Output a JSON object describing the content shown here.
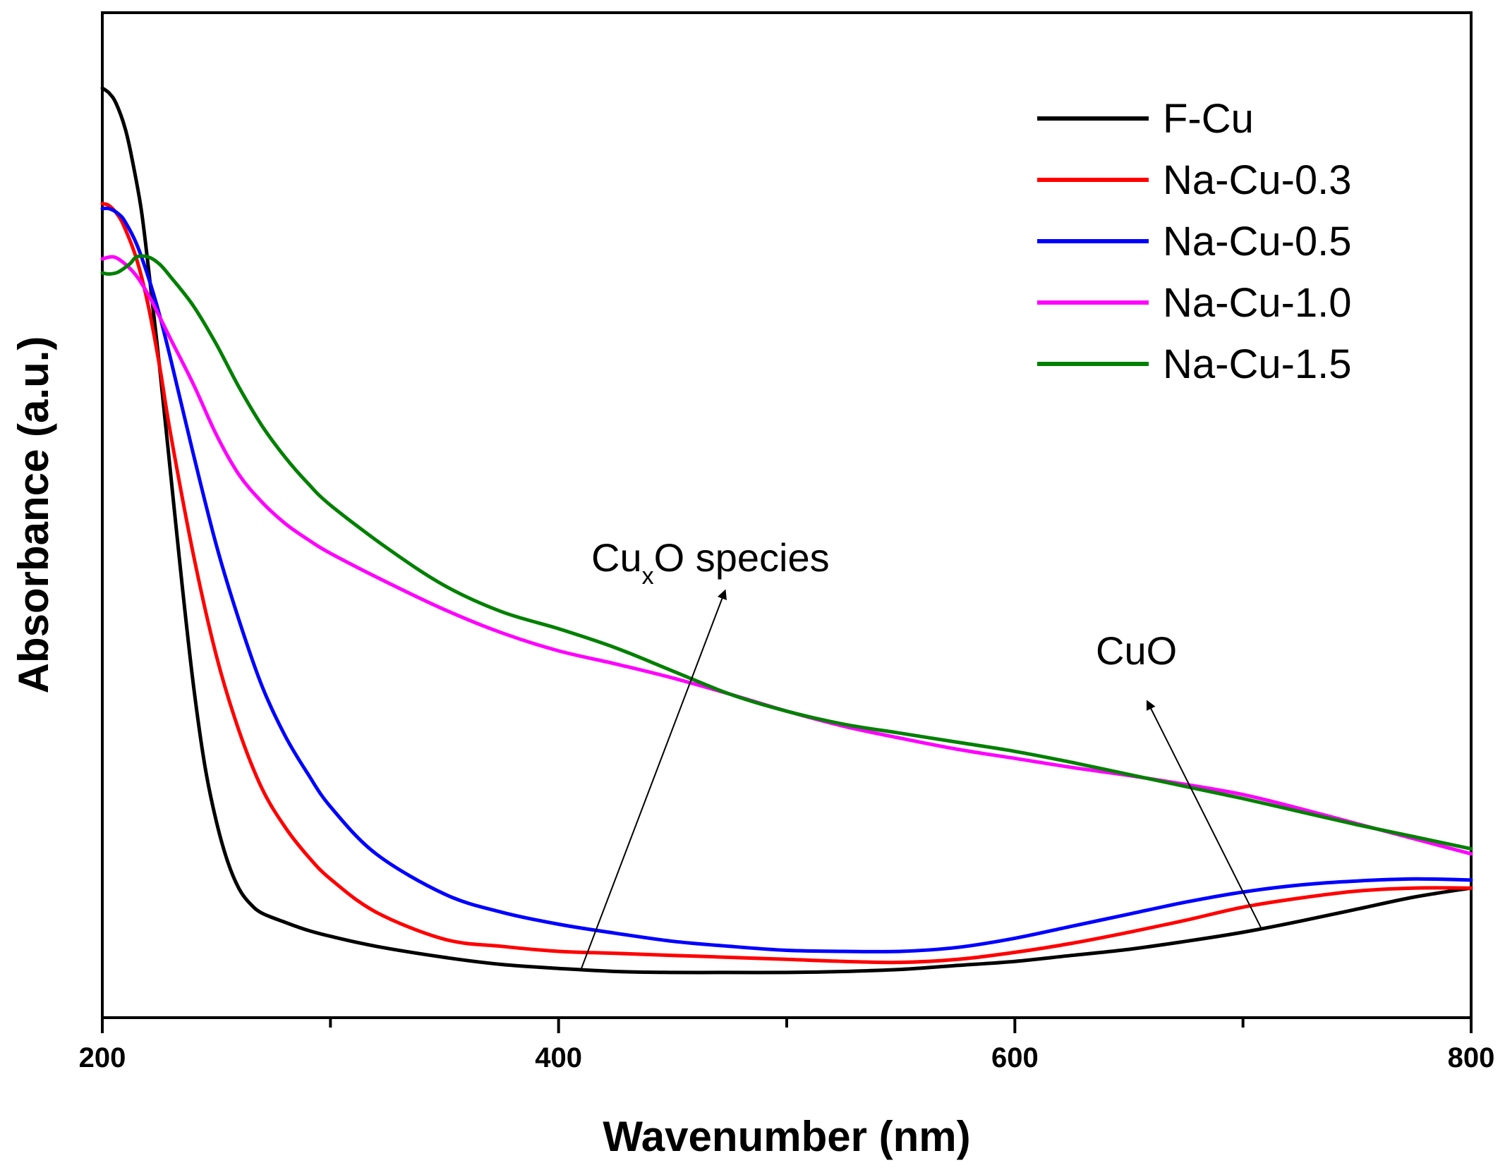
{
  "chart_data": {
    "type": "line",
    "title": "",
    "xlabel": "Wavenumber (nm)",
    "ylabel": "Absorbance (a.u.)",
    "xlim": [
      200,
      800
    ],
    "ylim": [
      0,
      1
    ],
    "xticks": [
      "200",
      "400",
      "600",
      "800"
    ],
    "y_tick_labels_shown": false,
    "grid": false,
    "legend_position": "top-right",
    "series": [
      {
        "name": "F-Cu",
        "color": "#000000",
        "x": [
          200,
          203,
          206,
          210,
          213,
          217,
          220,
          225,
          230,
          235,
          240,
          245,
          250,
          255,
          260,
          265,
          270,
          280,
          290,
          300,
          320,
          350,
          375,
          400,
          425,
          450,
          475,
          500,
          525,
          550,
          575,
          600,
          625,
          650,
          675,
          700,
          725,
          750,
          775,
          800
        ],
        "y": [
          0.925,
          0.92,
          0.91,
          0.885,
          0.855,
          0.805,
          0.75,
          0.65,
          0.54,
          0.43,
          0.33,
          0.25,
          0.195,
          0.155,
          0.128,
          0.113,
          0.104,
          0.095,
          0.087,
          0.081,
          0.071,
          0.06,
          0.053,
          0.049,
          0.046,
          0.045,
          0.045,
          0.045,
          0.046,
          0.048,
          0.052,
          0.056,
          0.062,
          0.068,
          0.076,
          0.085,
          0.096,
          0.108,
          0.12,
          0.129
        ]
      },
      {
        "name": "Na-Cu-0.3",
        "color": "#ff0000",
        "x": [
          200,
          203,
          207,
          210,
          215,
          220,
          225,
          230,
          240,
          250,
          260,
          270,
          280,
          290,
          300,
          320,
          350,
          375,
          400,
          425,
          450,
          475,
          500,
          525,
          550,
          575,
          600,
          625,
          650,
          675,
          700,
          725,
          750,
          775,
          800
        ],
        "y": [
          0.81,
          0.808,
          0.798,
          0.785,
          0.755,
          0.71,
          0.65,
          0.58,
          0.46,
          0.36,
          0.285,
          0.228,
          0.19,
          0.161,
          0.138,
          0.105,
          0.078,
          0.071,
          0.066,
          0.064,
          0.062,
          0.06,
          0.058,
          0.056,
          0.055,
          0.058,
          0.065,
          0.074,
          0.085,
          0.097,
          0.11,
          0.119,
          0.126,
          0.129,
          0.129
        ]
      },
      {
        "name": "Na-Cu-0.5",
        "color": "#0000ff",
        "x": [
          200,
          203,
          207,
          210,
          215,
          220,
          225,
          230,
          240,
          250,
          260,
          270,
          280,
          290,
          300,
          320,
          350,
          375,
          400,
          425,
          450,
          475,
          500,
          525,
          550,
          575,
          600,
          625,
          650,
          675,
          700,
          725,
          750,
          775,
          800
        ],
        "y": [
          0.805,
          0.805,
          0.8,
          0.792,
          0.77,
          0.738,
          0.7,
          0.655,
          0.56,
          0.47,
          0.395,
          0.33,
          0.281,
          0.243,
          0.21,
          0.163,
          0.123,
          0.105,
          0.093,
          0.084,
          0.076,
          0.071,
          0.067,
          0.066,
          0.066,
          0.07,
          0.079,
          0.091,
          0.103,
          0.115,
          0.125,
          0.132,
          0.136,
          0.138,
          0.137
        ]
      },
      {
        "name": "Na-Cu-1.0",
        "color": "#ff00ff",
        "x": [
          200,
          205,
          210,
          215,
          220,
          225,
          230,
          240,
          250,
          260,
          270,
          280,
          290,
          300,
          325,
          350,
          375,
          400,
          425,
          450,
          475,
          500,
          525,
          550,
          575,
          600,
          625,
          650,
          675,
          700,
          725,
          750,
          775,
          800
        ],
        "y": [
          0.755,
          0.757,
          0.75,
          0.738,
          0.72,
          0.698,
          0.675,
          0.63,
          0.58,
          0.54,
          0.513,
          0.492,
          0.476,
          0.462,
          0.433,
          0.406,
          0.383,
          0.365,
          0.352,
          0.338,
          0.322,
          0.305,
          0.29,
          0.278,
          0.267,
          0.258,
          0.249,
          0.241,
          0.232,
          0.222,
          0.208,
          0.193,
          0.178,
          0.163
        ]
      },
      {
        "name": "Na-Cu-1.5",
        "color": "#008000",
        "x": [
          200,
          203,
          207,
          212,
          215,
          220,
          225,
          230,
          240,
          250,
          260,
          270,
          280,
          290,
          300,
          325,
          350,
          375,
          400,
          425,
          450,
          475,
          500,
          525,
          550,
          575,
          600,
          625,
          650,
          675,
          700,
          725,
          750,
          775,
          800
        ],
        "y": [
          0.741,
          0.74,
          0.742,
          0.75,
          0.757,
          0.757,
          0.75,
          0.737,
          0.708,
          0.67,
          0.627,
          0.589,
          0.558,
          0.532,
          0.51,
          0.467,
          0.43,
          0.404,
          0.387,
          0.368,
          0.345,
          0.322,
          0.305,
          0.292,
          0.283,
          0.274,
          0.265,
          0.254,
          0.242,
          0.23,
          0.218,
          0.205,
          0.192,
          0.18,
          0.168
        ]
      }
    ],
    "annotations": [
      {
        "text_main": "Cu",
        "text_sub": "x",
        "text_rest": "O species",
        "arrow_from": [
          410,
          0.049
        ],
        "arrow_to": [
          473,
          0.425
        ]
      },
      {
        "text": "CuO",
        "arrow_from": [
          708,
          0.089
        ],
        "arrow_to": [
          658,
          0.315
        ]
      }
    ]
  }
}
